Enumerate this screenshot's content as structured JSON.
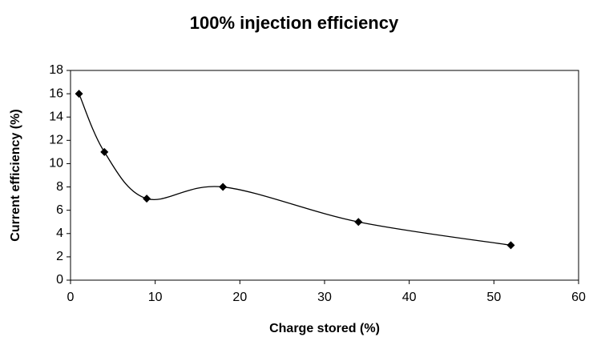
{
  "chart_data": {
    "type": "line",
    "title": "100% injection efficiency",
    "x_label": "Charge stored (%)",
    "y_label": "Current efficiency (%)",
    "x": [
      1,
      4,
      9,
      18,
      34,
      52
    ],
    "values": [
      16,
      11,
      7,
      8,
      5,
      3
    ],
    "color": "#000000",
    "smooth": true,
    "marker": "diamond",
    "xlim": [
      0,
      60
    ],
    "xticks": [
      0,
      10,
      20,
      30,
      40,
      50,
      60
    ],
    "ylim": [
      0,
      18
    ],
    "yticks": [
      0,
      2,
      4,
      6,
      8,
      10,
      12,
      14,
      16,
      18
    ]
  }
}
